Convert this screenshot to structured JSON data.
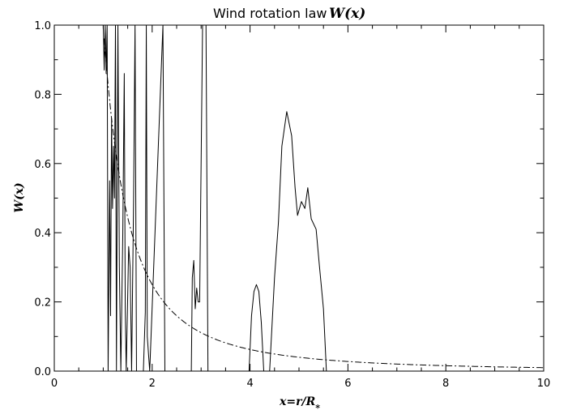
{
  "chart_data": {
    "type": "line",
    "title_text": "Wind rotation law",
    "title_math": "W(x)",
    "xlabel": "x=r/R*",
    "ylabel": "W(x)",
    "xlim": [
      0,
      10
    ],
    "ylim": [
      0,
      1
    ],
    "x_ticks": [
      0,
      2,
      4,
      6,
      8,
      10
    ],
    "y_ticks": [
      0.0,
      0.2,
      0.4,
      0.6,
      0.8,
      1.0
    ],
    "x_tick_labels": [
      "0",
      "2",
      "4",
      "6",
      "8",
      "10"
    ],
    "y_tick_labels": [
      "0.0",
      "0.2",
      "0.4",
      "0.6",
      "0.8",
      "1.0"
    ],
    "grid": false,
    "series": [
      {
        "style": "solid",
        "points": [
          [
            1.0,
            1.0
          ],
          [
            1.02,
            0.87
          ],
          [
            1.04,
            1.0
          ],
          [
            1.06,
            0.86
          ],
          [
            1.08,
            1.0
          ],
          [
            1.1,
            0.0
          ],
          [
            1.13,
            0.55
          ],
          [
            1.15,
            0.16
          ],
          [
            1.17,
            0.73
          ],
          [
            1.19,
            0.47
          ],
          [
            1.21,
            0.65
          ],
          [
            1.23,
            0.5
          ],
          [
            1.25,
            1.0
          ],
          [
            1.27,
            0.0
          ],
          [
            1.3,
            1.0
          ],
          [
            1.33,
            0.3
          ],
          [
            1.36,
            0.0
          ],
          [
            1.4,
            0.4
          ],
          [
            1.43,
            0.86
          ],
          [
            1.45,
            0.18
          ],
          [
            1.47,
            0.0
          ],
          [
            1.52,
            0.36
          ],
          [
            1.55,
            0.3
          ],
          [
            1.58,
            0.0
          ],
          [
            1.62,
            0.49
          ],
          [
            1.65,
            1.0
          ],
          [
            1.68,
            0.0
          ],
          [
            1.82,
            0.0
          ],
          [
            1.86,
            0.17
          ],
          [
            1.88,
            1.0
          ],
          [
            1.9,
            0.1
          ],
          [
            1.95,
            0.0
          ],
          [
            2.22,
            1.0
          ],
          [
            2.26,
            0.0
          ],
          [
            2.8,
            0.0
          ],
          [
            2.82,
            0.27
          ],
          [
            2.85,
            0.32
          ],
          [
            2.88,
            0.18
          ],
          [
            2.91,
            0.24
          ],
          [
            2.94,
            0.2
          ],
          [
            2.97,
            0.2
          ],
          [
            3.0,
            0.6
          ],
          [
            3.03,
            1.0
          ],
          [
            3.1,
            1.0
          ],
          [
            3.14,
            0.0
          ],
          [
            3.98,
            0.0
          ],
          [
            4.03,
            0.16
          ],
          [
            4.08,
            0.23
          ],
          [
            4.13,
            0.25
          ],
          [
            4.18,
            0.23
          ],
          [
            4.23,
            0.14
          ],
          [
            4.28,
            0.0
          ],
          [
            4.4,
            0.0
          ],
          [
            4.5,
            0.27
          ],
          [
            4.58,
            0.43
          ],
          [
            4.65,
            0.65
          ],
          [
            4.75,
            0.75
          ],
          [
            4.85,
            0.68
          ],
          [
            4.92,
            0.53
          ],
          [
            4.97,
            0.45
          ],
          [
            5.05,
            0.49
          ],
          [
            5.12,
            0.47
          ],
          [
            5.18,
            0.53
          ],
          [
            5.25,
            0.44
          ],
          [
            5.35,
            0.41
          ],
          [
            5.42,
            0.3
          ],
          [
            5.5,
            0.18
          ],
          [
            5.56,
            0.0
          ]
        ]
      },
      {
        "style": "dash-dot",
        "function": "1/x^2",
        "x_range": [
          1.02,
          10.0
        ]
      }
    ]
  }
}
